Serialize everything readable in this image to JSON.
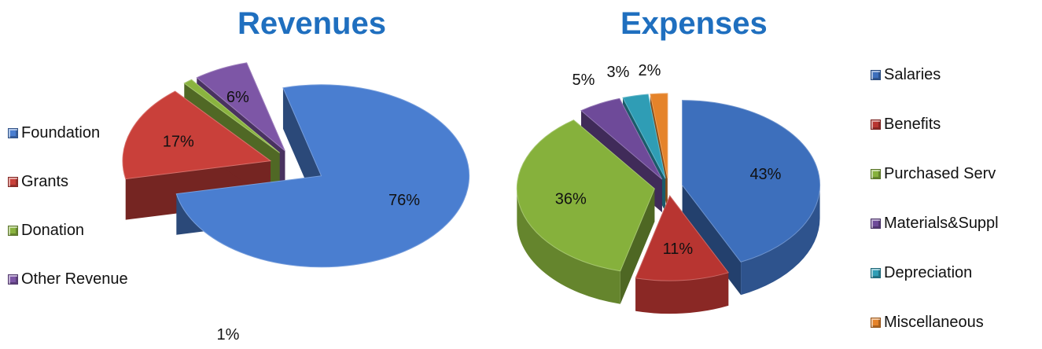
{
  "chart_data": [
    {
      "type": "pie",
      "title": "Revenues",
      "legend_position": "left",
      "slices": [
        {
          "label": "Foundation",
          "value": 76,
          "value_label": "76%",
          "color": "#4a7ed0"
        },
        {
          "label": "Grants",
          "value": 17,
          "value_label": "17%",
          "color": "#c9403a"
        },
        {
          "label": "Donation",
          "value": 1,
          "value_label": "1%",
          "color": "#8ab33f"
        },
        {
          "label": "Other Revenue",
          "value": 6,
          "value_label": "6%",
          "color": "#7d56a6"
        }
      ]
    },
    {
      "type": "pie",
      "title": "Expenses",
      "legend_position": "right",
      "slices": [
        {
          "label": "Salaries",
          "value": 43,
          "value_label": "43%",
          "color": "#3d6fbc"
        },
        {
          "label": "Benefits",
          "value": 11,
          "value_label": "11%",
          "color": "#b83531"
        },
        {
          "label": "Purchased Serv",
          "value": 36,
          "value_label": "36%",
          "color": "#86b13c"
        },
        {
          "label": "Materials&Suppl",
          "value": 5,
          "value_label": "5%",
          "color": "#6e4a99"
        },
        {
          "label": "Depreciation",
          "value": 3,
          "value_label": "3%",
          "color": "#2f9db5"
        },
        {
          "label": "Miscellaneous",
          "value": 2,
          "value_label": "2%",
          "color": "#e5832a"
        }
      ]
    }
  ]
}
